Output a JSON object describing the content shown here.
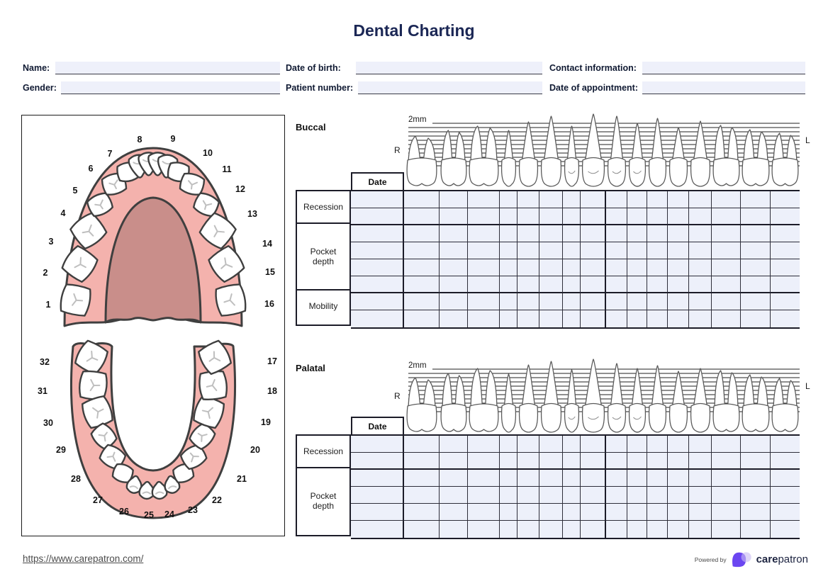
{
  "title": "Dental Charting",
  "form": {
    "fields": [
      {
        "label": "Name:",
        "value": ""
      },
      {
        "label": "Gender:",
        "value": ""
      },
      {
        "label": "Date of birth:",
        "value": ""
      },
      {
        "label": "Patient number:",
        "value": ""
      },
      {
        "label": "Contact information:",
        "value": ""
      },
      {
        "label": "Date of appointment:",
        "value": ""
      }
    ]
  },
  "diagram": {
    "upper_teeth": [
      "1",
      "2",
      "3",
      "4",
      "5",
      "6",
      "7",
      "8",
      "9",
      "10",
      "11",
      "12",
      "13",
      "14",
      "15",
      "16"
    ],
    "lower_teeth": [
      "17",
      "18",
      "19",
      "20",
      "21",
      "22",
      "23",
      "24",
      "25",
      "26",
      "27",
      "28",
      "29",
      "30",
      "31",
      "32"
    ]
  },
  "sections": {
    "buccal": {
      "label": "Buccal",
      "scale_label": "2mm",
      "right_label": "R",
      "left_label": "L",
      "date_label": "Date",
      "row_groups": [
        {
          "label": "Recession",
          "rows": 2
        },
        {
          "label": "Pocket depth",
          "rows": 4
        },
        {
          "label": "Mobility",
          "rows": 2
        }
      ]
    },
    "palatal": {
      "label": "Palatal",
      "scale_label": "2mm",
      "right_label": "R",
      "left_label": "L",
      "date_label": "Date",
      "row_groups": [
        {
          "label": "Recession",
          "rows": 2
        },
        {
          "label": "Pocket depth",
          "rows": 4
        }
      ]
    }
  },
  "footer": {
    "url": "https://www.carepatron.com/",
    "powered_by": "Powered by",
    "brand_bold": "care",
    "brand_rest": "patron"
  },
  "colors": {
    "title_navy": "#1b2755",
    "field_fill": "#eef0fa",
    "cell_fill": "#edf0fa",
    "grid_line": "#2e2e3a",
    "grid_heavy": "#1c1c28",
    "gum_pink": "#f4b2ad",
    "palate_pink": "#c98e8a",
    "tooth_outline": "#3f3f3f",
    "logo_purple": "#6b46f1",
    "logo_light": "#c9bcf4"
  }
}
